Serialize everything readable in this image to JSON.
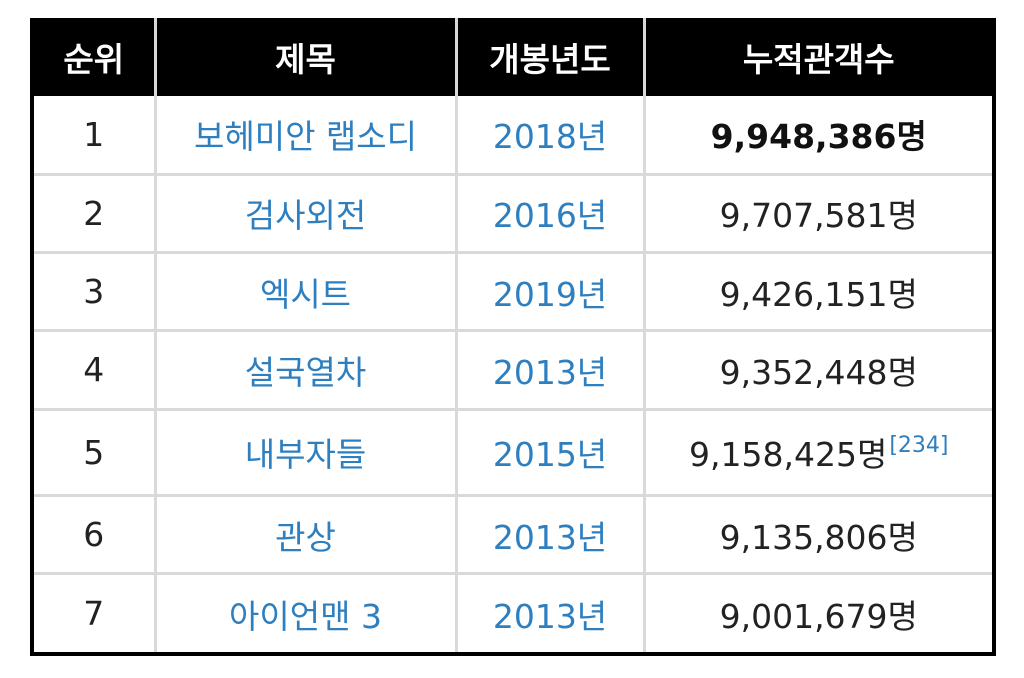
{
  "headers": [
    "순위",
    "제목",
    "개봉년도",
    "누적관객수"
  ],
  "rows": [
    {
      "rank": "1",
      "title": "보헤미안 랩소디",
      "year": "2018년",
      "audience": "9,948,386명",
      "note": ""
    },
    {
      "rank": "2",
      "title": "검사외전",
      "year": "2016년",
      "audience": "9,707,581명",
      "note": ""
    },
    {
      "rank": "3",
      "title": "엑시트",
      "year": "2019년",
      "audience": "9,426,151명",
      "note": ""
    },
    {
      "rank": "4",
      "title": "설국열차",
      "year": "2013년",
      "audience": "9,352,448명",
      "note": ""
    },
    {
      "rank": "5",
      "title": "내부자들",
      "year": "2015년",
      "audience": "9,158,425명",
      "note": "[234]"
    },
    {
      "rank": "6",
      "title": "관상",
      "year": "2013년",
      "audience": "9,135,806명",
      "note": ""
    },
    {
      "rank": "7",
      "title": "아이언맨 3",
      "year": "2013년",
      "audience": "9,001,679명",
      "note": ""
    }
  ],
  "colors": {
    "header_bg": "#000000",
    "header_text": "#ffffff",
    "link": "#2e7fbf",
    "grid": "#d9d9d9"
  }
}
